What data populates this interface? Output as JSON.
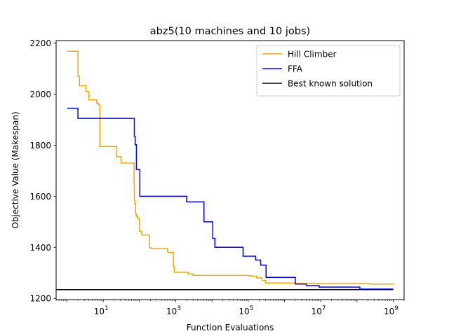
{
  "chart_data": {
    "type": "line",
    "title": "abz5(10 machines and 10 jobs)",
    "xlabel": "Function Evaluations",
    "ylabel": "Objective Value (Makespan)",
    "x_scale": "log",
    "xlim": [
      0.5,
      2000000000
    ],
    "ylim": [
      1195,
      2210
    ],
    "x_ticks": [
      {
        "value": 10,
        "base": "10",
        "exp": "1"
      },
      {
        "value": 1000,
        "base": "10",
        "exp": "3"
      },
      {
        "value": 100000,
        "base": "10",
        "exp": "5"
      },
      {
        "value": 10000000,
        "base": "10",
        "exp": "7"
      },
      {
        "value": 1000000000,
        "base": "10",
        "exp": "9"
      }
    ],
    "y_ticks": [
      "1200",
      "1400",
      "1600",
      "1800",
      "2000",
      "2200"
    ],
    "grid": false,
    "legend_position": "top-right",
    "series": [
      {
        "name": "Hill Climber",
        "color": "#ffa500",
        "step": true,
        "points": [
          [
            1,
            2168
          ],
          [
            2,
            2070
          ],
          [
            2.2,
            2033
          ],
          [
            3,
            2033
          ],
          [
            3.3,
            2010
          ],
          [
            4,
            1978
          ],
          [
            6,
            1978
          ],
          [
            6.5,
            1965
          ],
          [
            7.3,
            1958
          ],
          [
            8,
            1795
          ],
          [
            20,
            1795
          ],
          [
            23,
            1755
          ],
          [
            30,
            1755
          ],
          [
            31,
            1730
          ],
          [
            65,
            1730
          ],
          [
            71,
            1650
          ],
          [
            72,
            1585
          ],
          [
            74,
            1570
          ],
          [
            78,
            1530
          ],
          [
            82,
            1520
          ],
          [
            90,
            1512
          ],
          [
            98,
            1512
          ],
          [
            100,
            1462
          ],
          [
            115,
            1448
          ],
          [
            180,
            1448
          ],
          [
            190,
            1398
          ],
          [
            210,
            1395
          ],
          [
            550,
            1395
          ],
          [
            600,
            1380
          ],
          [
            850,
            1380
          ],
          [
            860,
            1325
          ],
          [
            900,
            1325
          ],
          [
            910,
            1302
          ],
          [
            2200,
            1295
          ],
          [
            3000,
            1290
          ],
          [
            100000,
            1289
          ],
          [
            120000,
            1287
          ],
          [
            160000,
            1287
          ],
          [
            170000,
            1280
          ],
          [
            220000,
            1280
          ],
          [
            240000,
            1270
          ],
          [
            280000,
            1270
          ],
          [
            300000,
            1260
          ],
          [
            1500000,
            1260
          ],
          [
            2000000,
            1258
          ],
          [
            200000000,
            1258
          ],
          [
            220000000,
            1256
          ],
          [
            1000000000,
            1254
          ]
        ]
      },
      {
        "name": "FFA",
        "color": "#0000ff",
        "step": true,
        "points": [
          [
            1,
            1945
          ],
          [
            2,
            1905
          ],
          [
            70,
            1905
          ],
          [
            72,
            1835
          ],
          [
            76,
            1802
          ],
          [
            80,
            1802
          ],
          [
            82,
            1705
          ],
          [
            100,
            1705
          ],
          [
            102,
            1600
          ],
          [
            1000,
            1600
          ],
          [
            2000,
            1578
          ],
          [
            5500,
            1578
          ],
          [
            6000,
            1500
          ],
          [
            10000,
            1500
          ],
          [
            10500,
            1435
          ],
          [
            12000,
            1400
          ],
          [
            70000,
            1400
          ],
          [
            72000,
            1365
          ],
          [
            150000,
            1365
          ],
          [
            160000,
            1350
          ],
          [
            200000,
            1350
          ],
          [
            220000,
            1330
          ],
          [
            300000,
            1330
          ],
          [
            310000,
            1282
          ],
          [
            1000000,
            1282
          ],
          [
            2000000,
            1256
          ],
          [
            4000000,
            1250
          ],
          [
            8000000,
            1250
          ],
          [
            9000000,
            1244
          ],
          [
            110000000,
            1244
          ],
          [
            120000000,
            1236
          ],
          [
            1000000000,
            1236
          ]
        ]
      },
      {
        "name": "Best known solution",
        "color": "#000000",
        "step": false,
        "points": [
          [
            0.5,
            1234
          ],
          [
            1000000000,
            1234
          ]
        ]
      }
    ]
  }
}
